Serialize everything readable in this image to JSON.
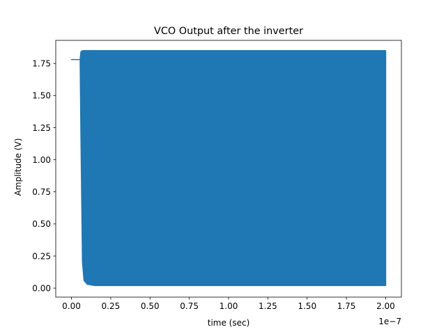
{
  "chart_data": {
    "type": "line",
    "title": "VCO Output after the inverter",
    "xlabel": "time (sec)",
    "ylabel": "Amplitude (V)",
    "x_offset_text": "1e−7",
    "xlim": [
      -1e-08,
      2.1e-07
    ],
    "ylim": [
      -0.07,
      1.93
    ],
    "x_ticks": [
      0.0,
      2.5e-08,
      5e-08,
      7.5e-08,
      1e-07,
      1.25e-07,
      1.5e-07,
      1.75e-07,
      2e-07
    ],
    "x_tick_labels": [
      "0.00",
      "0.25",
      "0.50",
      "0.75",
      "1.00",
      "1.25",
      "1.50",
      "1.75",
      "2.00"
    ],
    "y_ticks": [
      0.0,
      0.25,
      0.5,
      0.75,
      1.0,
      1.25,
      1.5,
      1.75
    ],
    "y_tick_labels": [
      "0.00",
      "0.25",
      "0.50",
      "0.75",
      "1.00",
      "1.25",
      "1.50",
      "1.75"
    ],
    "grid": false,
    "series": [
      {
        "color": "#1f77b4",
        "x": [
          0.0,
          5.5e-09,
          6e-09,
          7e-09,
          8e-09,
          1e-08,
          1.5e-08,
          1e-07,
          2e-07
        ],
        "y_high": [
          1.78,
          1.78,
          1.84,
          1.85,
          1.85,
          1.85,
          1.85,
          1.85,
          1.85
        ],
        "y_low": [
          1.78,
          1.78,
          1.2,
          0.2,
          0.06,
          0.03,
          0.02,
          0.02,
          0.02
        ],
        "description": "Constant ~1.78 V until ~0.055e-7 s, then rapid oscillation between ~0.02 V and ~1.85 V through 2.0e-7 s"
      }
    ]
  }
}
